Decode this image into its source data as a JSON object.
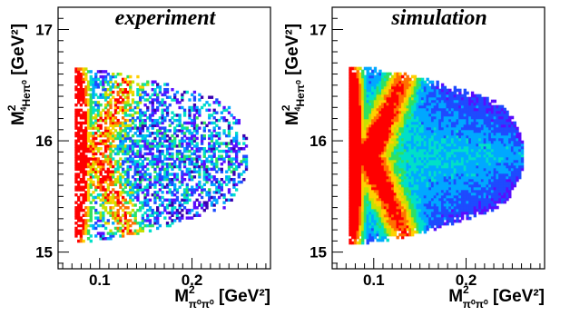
{
  "chart_data": [
    {
      "type": "heatmap",
      "title": "experiment",
      "xlabel": {
        "base": "M",
        "sup": "2",
        "sub": "π⁰π⁰",
        "unit": "[GeV²]"
      },
      "ylabel": {
        "base": "M",
        "sup": "2",
        "sub_sup": "4",
        "sub": "Heπ⁰",
        "unit": "[GeV²]"
      },
      "xlim": [
        0.055,
        0.285
      ],
      "ylim": [
        14.85,
        17.2
      ],
      "x_ticks": [
        0.1,
        0.2
      ],
      "x_tick_labels": [
        "0.1",
        "0.2"
      ],
      "y_ticks": [
        15,
        16,
        17
      ],
      "y_tick_labels": [
        "15",
        "16",
        "17"
      ],
      "colormap": [
        "#3b00b0",
        "#5a0dff",
        "#1e4bff",
        "#00a8ff",
        "#00e0c8",
        "#30e060",
        "#c8e000",
        "#ffd000",
        "#ff7000",
        "#ff0000"
      ],
      "region": {
        "description": "Dalitz-like boundary",
        "x_min": 0.073,
        "x_max": 0.26,
        "y_center": 15.86,
        "y_half_width_at_x_min": 0.78,
        "y_half_width_at_x_max": 0.4,
        "y_bottom": 15.02,
        "y_top": 16.82
      },
      "density_peak": {
        "x": 0.08,
        "y": 15.9,
        "level": "max"
      },
      "texture": "sparse"
    },
    {
      "type": "heatmap",
      "title": "simulation",
      "xlabel": {
        "base": "M",
        "sup": "2",
        "sub": "π⁰π⁰",
        "unit": "[GeV²]"
      },
      "ylabel": {
        "base": "M",
        "sup": "2",
        "sub_sup": "4",
        "sub": "Heπ⁰",
        "unit": "[GeV²]"
      },
      "xlim": [
        0.055,
        0.285
      ],
      "ylim": [
        14.85,
        17.2
      ],
      "x_ticks": [
        0.1,
        0.2
      ],
      "x_tick_labels": [
        "0.1",
        "0.2"
      ],
      "y_ticks": [
        15,
        16,
        17
      ],
      "y_tick_labels": [
        "15",
        "16",
        "17"
      ],
      "colormap": [
        "#3b00b0",
        "#5a0dff",
        "#1e4bff",
        "#00a8ff",
        "#00e0c8",
        "#30e060",
        "#c8e000",
        "#ffd000",
        "#ff7000",
        "#ff0000"
      ],
      "region": {
        "description": "Dalitz-like boundary",
        "x_min": 0.073,
        "x_max": 0.262,
        "y_center": 15.86,
        "y_half_width_at_x_min": 0.8,
        "y_half_width_at_x_max": 0.38,
        "y_bottom": 14.95,
        "y_top": 16.86
      },
      "density_peak": {
        "x": 0.08,
        "y": 15.9,
        "level": "max"
      },
      "texture": "smooth"
    }
  ]
}
